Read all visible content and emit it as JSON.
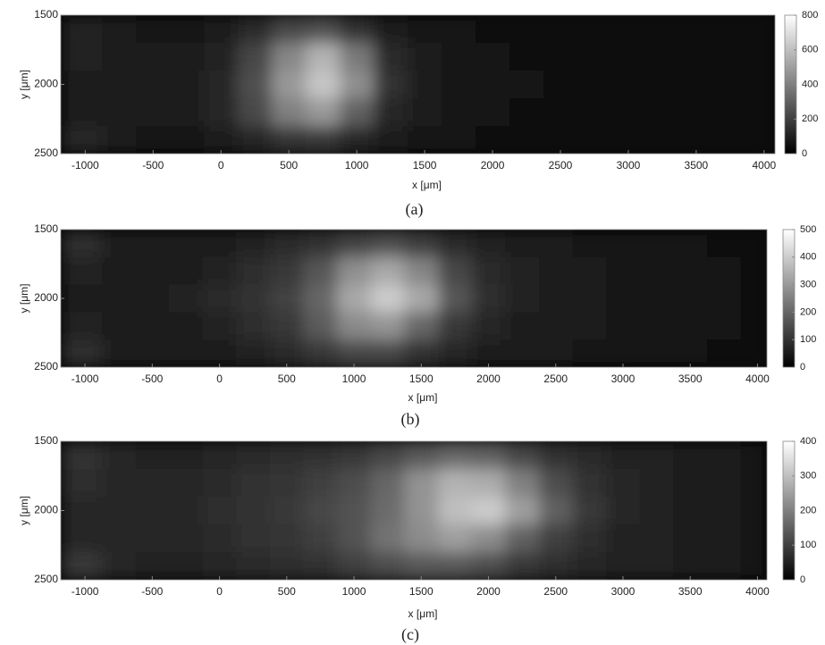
{
  "chart_data": [
    {
      "type": "heatmap",
      "caption": "(a)",
      "xlabel": "x [μm]",
      "ylabel": "y [μm]",
      "xlim": [
        -1180,
        4080
      ],
      "ylim": [
        2500,
        1500
      ],
      "xticks": [
        -1000,
        -500,
        0,
        500,
        1000,
        1500,
        2000,
        2500,
        3000,
        3500,
        4000
      ],
      "yticks": [
        1500,
        2000,
        2500
      ],
      "x": [
        -1000,
        -750,
        -500,
        -250,
        0,
        250,
        500,
        750,
        1000,
        1250,
        1500,
        1750,
        2000,
        2250,
        2500,
        2750,
        3000,
        3250,
        3500,
        3750,
        4000
      ],
      "y": [
        1600,
        1800,
        2000,
        2200,
        2400
      ],
      "z": [
        [
          110,
          80,
          70,
          70,
          90,
          130,
          220,
          250,
          160,
          90,
          70,
          60,
          50,
          45,
          40,
          40,
          35,
          35,
          30,
          30,
          30
        ],
        [
          100,
          80,
          80,
          90,
          110,
          220,
          420,
          560,
          380,
          130,
          80,
          65,
          55,
          50,
          45,
          40,
          40,
          35,
          35,
          30,
          30
        ],
        [
          90,
          80,
          80,
          90,
          120,
          250,
          480,
          620,
          450,
          160,
          90,
          70,
          60,
          55,
          50,
          45,
          45,
          40,
          35,
          35,
          30
        ],
        [
          80,
          80,
          80,
          90,
          120,
          230,
          400,
          480,
          300,
          120,
          80,
          65,
          55,
          50,
          45,
          40,
          40,
          35,
          35,
          30,
          30
        ],
        [
          120,
          80,
          70,
          70,
          90,
          120,
          170,
          180,
          120,
          80,
          65,
          55,
          50,
          45,
          40,
          40,
          35,
          35,
          30,
          30,
          30
        ]
      ],
      "clim": [
        0,
        800
      ],
      "cticks": [
        0,
        200,
        400,
        600,
        800
      ]
    },
    {
      "type": "heatmap",
      "caption": "(b)",
      "xlabel": "x [μm]",
      "ylabel": "y [μm]",
      "xlim": [
        -1180,
        4070
      ],
      "ylim": [
        2500,
        1500
      ],
      "xticks": [
        -1000,
        -500,
        0,
        500,
        1000,
        1500,
        2000,
        2500,
        3000,
        3500,
        4000
      ],
      "yticks": [
        1500,
        2000,
        2500
      ],
      "x": [
        -1000,
        -750,
        -500,
        -250,
        0,
        250,
        500,
        750,
        1000,
        1250,
        1500,
        1750,
        2000,
        2250,
        2500,
        2750,
        3000,
        3250,
        3500,
        3750,
        4000
      ],
      "y": [
        1600,
        1800,
        2000,
        2200,
        2400
      ],
      "z": [
        [
          90,
          60,
          55,
          55,
          60,
          70,
          80,
          100,
          130,
          150,
          120,
          80,
          65,
          55,
          50,
          45,
          40,
          40,
          35,
          30,
          30
        ],
        [
          70,
          60,
          60,
          60,
          70,
          90,
          110,
          170,
          280,
          330,
          260,
          140,
          80,
          65,
          55,
          50,
          45,
          40,
          35,
          35,
          30
        ],
        [
          60,
          60,
          60,
          70,
          80,
          100,
          130,
          200,
          330,
          400,
          330,
          170,
          90,
          70,
          55,
          50,
          45,
          40,
          35,
          35,
          30
        ],
        [
          70,
          60,
          60,
          60,
          70,
          90,
          110,
          180,
          270,
          290,
          200,
          110,
          75,
          60,
          55,
          50,
          45,
          40,
          35,
          35,
          30
        ],
        [
          90,
          60,
          55,
          55,
          60,
          70,
          80,
          110,
          140,
          140,
          100,
          75,
          60,
          55,
          50,
          45,
          40,
          40,
          35,
          30,
          30
        ]
      ],
      "clim": [
        0,
        500
      ],
      "cticks": [
        0,
        100,
        200,
        300,
        400,
        500
      ]
    },
    {
      "type": "heatmap",
      "caption": "(c)",
      "xlabel": "x [μm]",
      "ylabel": "y [μm]",
      "xlim": [
        -1180,
        4070
      ],
      "ylim": [
        2500,
        1500
      ],
      "xticks": [
        -1000,
        -500,
        0,
        500,
        1000,
        1500,
        2000,
        2500,
        3000,
        3500,
        4000
      ],
      "yticks": [
        1500,
        2000,
        2500
      ],
      "x": [
        -1000,
        -750,
        -500,
        -250,
        0,
        250,
        500,
        750,
        1000,
        1250,
        1500,
        1750,
        2000,
        2250,
        2500,
        2750,
        3000,
        3250,
        3500,
        3750,
        4000
      ],
      "y": [
        1600,
        1800,
        2000,
        2200,
        2400
      ],
      "z": [
        [
          80,
          60,
          55,
          55,
          60,
          65,
          70,
          80,
          90,
          110,
          140,
          160,
          150,
          110,
          80,
          65,
          55,
          50,
          45,
          40,
          35
        ],
        [
          70,
          60,
          60,
          60,
          65,
          75,
          85,
          100,
          120,
          160,
          230,
          280,
          270,
          200,
          120,
          80,
          60,
          50,
          45,
          40,
          35
        ],
        [
          60,
          60,
          60,
          60,
          70,
          80,
          90,
          110,
          130,
          170,
          230,
          300,
          320,
          250,
          150,
          90,
          60,
          50,
          45,
          40,
          35
        ],
        [
          60,
          60,
          60,
          60,
          65,
          75,
          85,
          100,
          130,
          180,
          220,
          250,
          220,
          150,
          100,
          70,
          55,
          50,
          45,
          40,
          35
        ],
        [
          90,
          60,
          55,
          55,
          60,
          65,
          70,
          80,
          100,
          120,
          140,
          140,
          120,
          90,
          70,
          60,
          55,
          50,
          45,
          40,
          35
        ]
      ],
      "clim": [
        0,
        400
      ],
      "cticks": [
        0,
        100,
        200,
        300,
        400
      ]
    }
  ]
}
